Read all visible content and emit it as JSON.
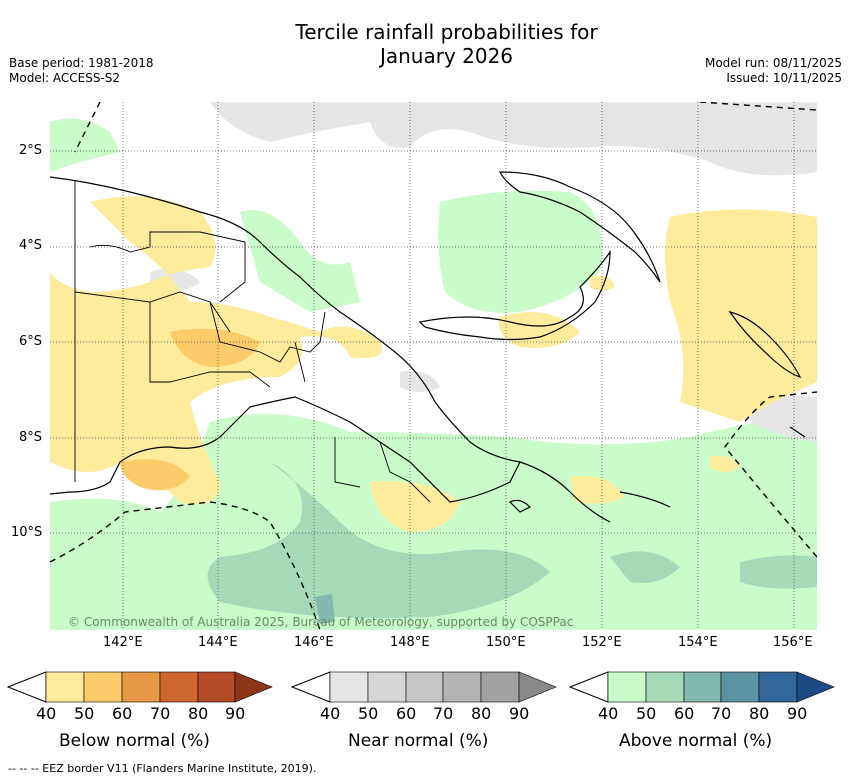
{
  "title_line1": "Tercile rainfall probabilities for",
  "title_line2": "January 2026",
  "meta": {
    "base_period": "Base period: 1981-2018",
    "model": "Model: ACCESS-S2",
    "model_run": "Model run: 08/11/2025",
    "issued": "Issued: 10/11/2025"
  },
  "map": {
    "lat_labels": [
      "2°S",
      "4°S",
      "6°S",
      "8°S",
      "10°S"
    ],
    "lon_labels": [
      "142°E",
      "144°E",
      "146°E",
      "148°E",
      "150°E",
      "152°E",
      "154°E",
      "156°E"
    ],
    "credit": "© Commonwealth of Australia 2025, Bureau of Meteorology, supported by COSPPac"
  },
  "colorbars": [
    {
      "title": "Below normal (%)",
      "ticks": [
        "40",
        "50",
        "60",
        "70",
        "80",
        "90"
      ],
      "colors": [
        "#ffeb9c",
        "#fccc6b",
        "#e69846",
        "#d0662f",
        "#b34b27",
        "#8c3519"
      ]
    },
    {
      "title": "Near normal (%)",
      "ticks": [
        "40",
        "50",
        "60",
        "70",
        "80",
        "90"
      ],
      "colors": [
        "#e6e6e6",
        "#d6d6d6",
        "#c6c6c6",
        "#b4b4b4",
        "#a2a2a2",
        "#888888"
      ]
    },
    {
      "title": "Above normal (%)",
      "ticks": [
        "40",
        "50",
        "60",
        "70",
        "80",
        "90"
      ],
      "colors": [
        "#c9fcc9",
        "#a6d9b8",
        "#82b8ad",
        "#5c93a3",
        "#33679b",
        "#1c4a85"
      ]
    }
  ],
  "footer": "--  --  -- EEZ border V11 (Flanders Marine Institute, 2019)."
}
